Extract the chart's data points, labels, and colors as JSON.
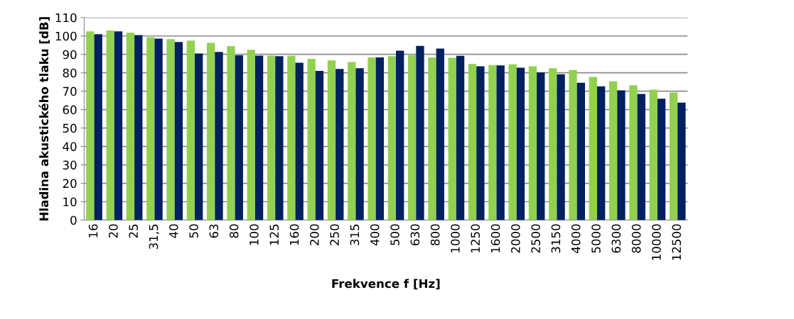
{
  "chart_data": {
    "type": "bar",
    "xlabel": "Frekvence f [Hz]",
    "ylabel": "Hladina akustického tlaku [dB]",
    "categories": [
      "16",
      "20",
      "25",
      "31,5",
      "40",
      "50",
      "63",
      "80",
      "100",
      "125",
      "160",
      "200",
      "250",
      "315",
      "400",
      "500",
      "630",
      "800",
      "1000",
      "1250",
      "1600",
      "2000",
      "2500",
      "3150",
      "4000",
      "5000",
      "6300",
      "8000",
      "10000",
      "12500"
    ],
    "series": [
      {
        "color": "#92d050",
        "values": [
          102.5,
          103,
          101.8,
          99.3,
          98.3,
          97.5,
          96.2,
          94.5,
          92.5,
          89.3,
          89.2,
          87.6,
          86.7,
          85.8,
          88.3,
          89,
          89.5,
          88.3,
          88.2,
          84.8,
          84.2,
          84.6,
          83.5,
          82.5,
          81.5,
          77.8,
          75.4,
          73.2,
          70.8,
          69.3
        ]
      },
      {
        "color": "#002060",
        "values": [
          101,
          102.5,
          100.5,
          98.5,
          96.7,
          90.5,
          91.3,
          89.5,
          89.3,
          89,
          85.5,
          81,
          82.1,
          82.5,
          88.3,
          92,
          94.6,
          93.2,
          89.2,
          83.5,
          84,
          82.8,
          80.2,
          79.2,
          74.6,
          72.7,
          70.4,
          68.5,
          65.9,
          63.8
        ]
      }
    ],
    "ylim": [
      0,
      110
    ],
    "yticks": [
      0,
      10,
      20,
      30,
      40,
      50,
      60,
      70,
      80,
      90,
      100,
      110
    ],
    "grid": "y"
  }
}
